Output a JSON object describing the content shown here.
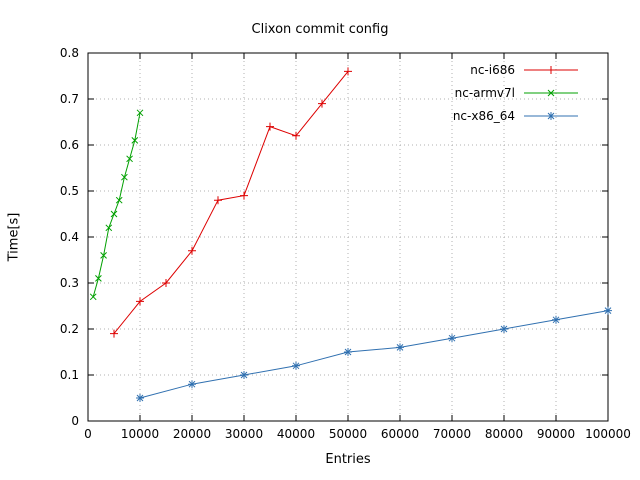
{
  "chart_data": {
    "type": "line",
    "title": "Clixon commit config",
    "xlabel": "Entries",
    "ylabel": "Time[s]",
    "xlim": [
      0,
      100000
    ],
    "ylim": [
      0,
      0.8
    ],
    "xticks": [
      0,
      10000,
      20000,
      30000,
      40000,
      50000,
      60000,
      70000,
      80000,
      90000,
      100000
    ],
    "xtick_labels": [
      "0",
      "10000",
      "20000",
      "30000",
      "40000",
      "50000",
      "60000",
      "70000",
      "80000",
      "90000",
      "100000"
    ],
    "yticks": [
      0,
      0.1,
      0.2,
      0.3,
      0.4,
      0.5,
      0.6,
      0.7,
      0.8
    ],
    "ytick_labels": [
      "0",
      "0.1",
      "0.2",
      "0.3",
      "0.4",
      "0.5",
      "0.6",
      "0.7",
      "0.8"
    ],
    "grid": true,
    "grid_color": "#b0b0b0",
    "border_color": "#000000",
    "legend_position": "top-right",
    "series": [
      {
        "name": "nc-i686",
        "color": "#dd0000",
        "marker": "plus",
        "points": [
          [
            5000,
            0.19
          ],
          [
            10000,
            0.26
          ],
          [
            15000,
            0.3
          ],
          [
            20000,
            0.37
          ],
          [
            25000,
            0.48
          ],
          [
            30000,
            0.49
          ],
          [
            35000,
            0.64
          ],
          [
            40000,
            0.62
          ],
          [
            45000,
            0.69
          ],
          [
            50000,
            0.76
          ]
        ]
      },
      {
        "name": "nc-armv7l",
        "color": "#00a000",
        "marker": "x",
        "points": [
          [
            1000,
            0.27
          ],
          [
            2000,
            0.31
          ],
          [
            3000,
            0.36
          ],
          [
            4000,
            0.42
          ],
          [
            5000,
            0.45
          ],
          [
            6000,
            0.48
          ],
          [
            7000,
            0.53
          ],
          [
            8000,
            0.57
          ],
          [
            9000,
            0.61
          ],
          [
            10000,
            0.67
          ]
        ]
      },
      {
        "name": "nc-x86_64",
        "color": "#3070b0",
        "marker": "asterisk",
        "points": [
          [
            10000,
            0.05
          ],
          [
            20000,
            0.08
          ],
          [
            30000,
            0.1
          ],
          [
            40000,
            0.12
          ],
          [
            50000,
            0.15
          ],
          [
            60000,
            0.16
          ],
          [
            70000,
            0.18
          ],
          [
            80000,
            0.2
          ],
          [
            90000,
            0.22
          ],
          [
            100000,
            0.24
          ]
        ]
      }
    ]
  }
}
